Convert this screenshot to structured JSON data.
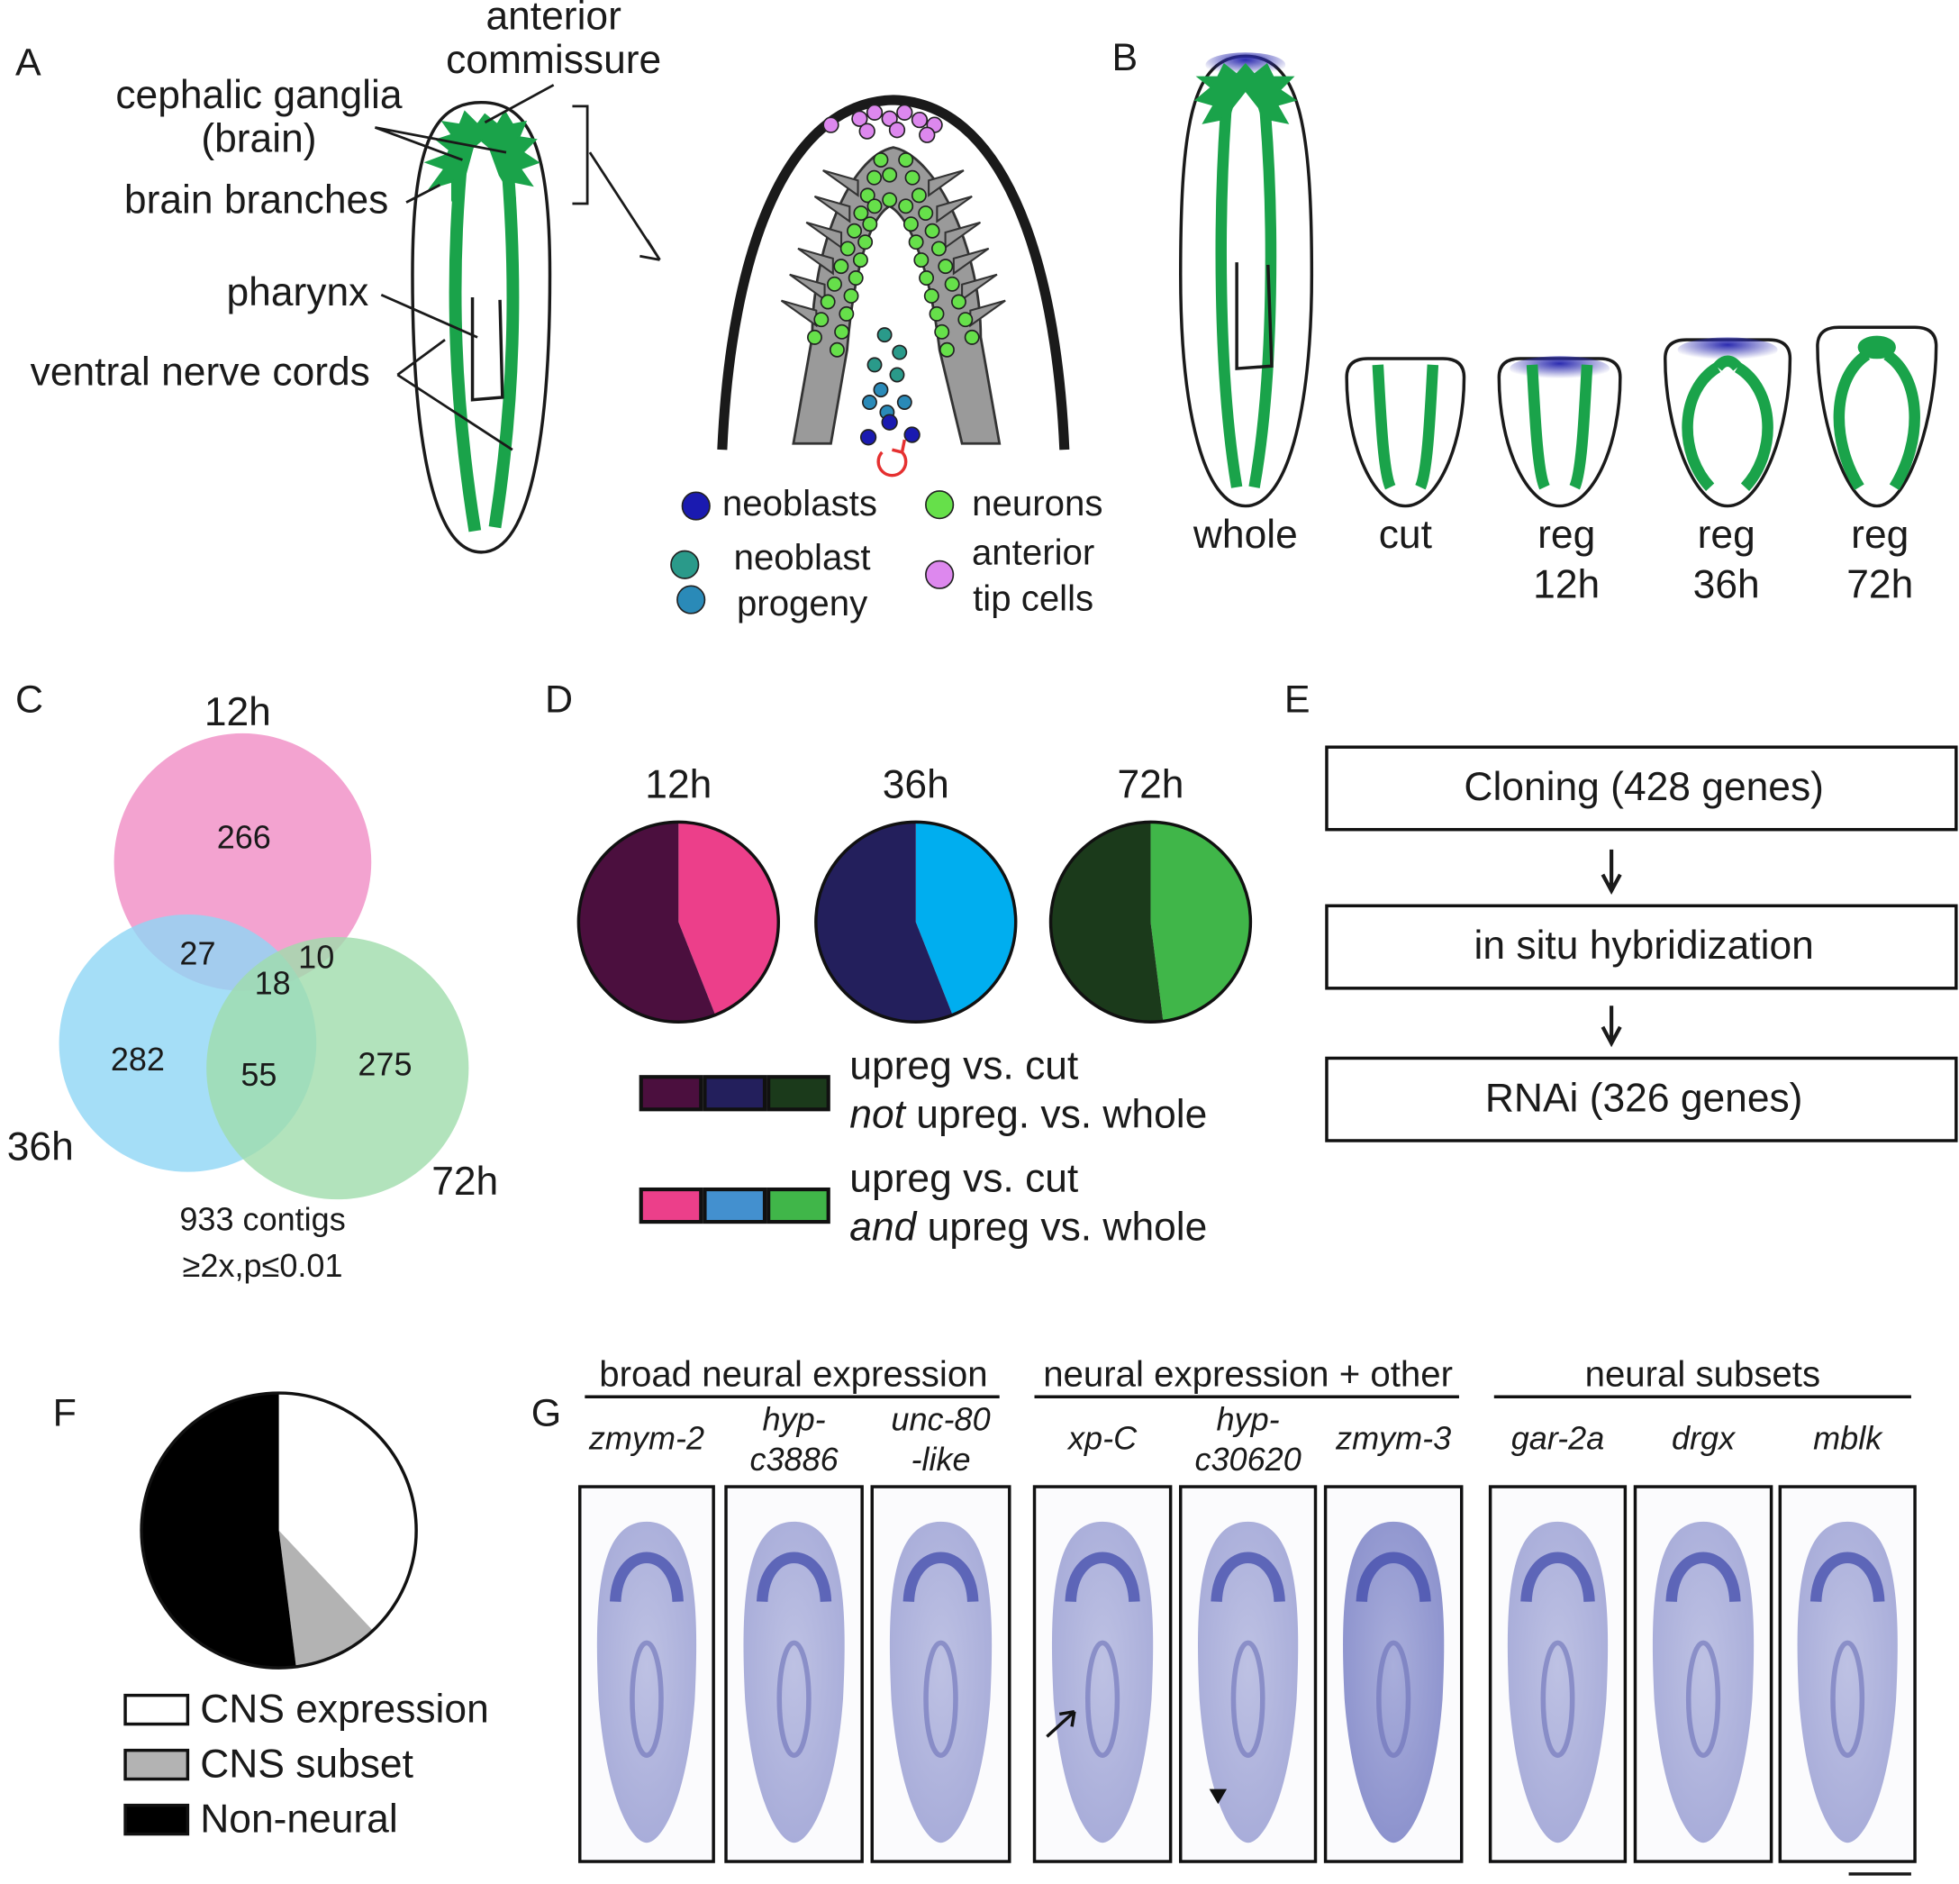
{
  "panel_a": {
    "label": "A",
    "annotations": [
      [
        "anterior",
        "commissure"
      ],
      [
        "cephalic ganglia",
        "(brain)"
      ],
      [
        "brain branches"
      ],
      [
        "pharynx"
      ],
      [
        "ventral nerve cords"
      ]
    ],
    "legend": [
      [
        "neoblasts"
      ],
      [
        "neurons"
      ],
      [
        "neoblast",
        "progeny"
      ],
      [
        "anterior",
        "tip cells"
      ]
    ]
  },
  "panel_b": {
    "label": "B",
    "stages": [
      [
        "whole"
      ],
      [
        "cut"
      ],
      [
        "reg",
        "12h"
      ],
      [
        "reg",
        "36h"
      ],
      [
        "reg",
        "72h"
      ]
    ]
  },
  "panel_c": {
    "label": "C",
    "sets": [
      "12h",
      "36h",
      "72h"
    ],
    "regions": {
      "only_12h": 266,
      "only_36h": 282,
      "only_72h": 275,
      "12h_36h": 27,
      "12h_72h": 10,
      "36h_72h": 55,
      "all": 18
    },
    "footer": [
      "933 contigs",
      "≥2x,p≤0.01"
    ]
  },
  "panel_d": {
    "label": "D",
    "chart_data": [
      {
        "type": "pie",
        "title": "12h",
        "values": [
          44,
          56
        ],
        "colors": [
          "#ec3f8a",
          "#4b0f3e"
        ]
      },
      {
        "type": "pie",
        "title": "36h",
        "values": [
          44,
          56
        ],
        "colors": [
          "#00aeef",
          "#231f5c"
        ]
      },
      {
        "type": "pie",
        "title": "72h",
        "values": [
          48,
          52
        ],
        "colors": [
          "#40b649",
          "#1b3a1b"
        ]
      }
    ],
    "legend": [
      {
        "colors": [
          "#4b0f3e",
          "#231f5c",
          "#1b3a1b"
        ],
        "lines": [
          [
            "upreg vs. cut"
          ],
          [
            "not",
            " upreg. vs. whole"
          ]
        ]
      },
      {
        "colors": [
          "#ec3f8a",
          "#4390cf",
          "#40b649"
        ],
        "lines": [
          [
            "upreg vs. cut"
          ],
          [
            "and",
            " upreg vs. whole"
          ]
        ]
      }
    ]
  },
  "panel_e": {
    "label": "E",
    "steps": [
      "Cloning (428 genes)",
      "in situ hybridization",
      "RNAi (326 genes)"
    ]
  },
  "panel_f": {
    "label": "F",
    "chart_data": {
      "type": "pie",
      "categories": [
        "CNS expression",
        "CNS subset",
        "Non-neural"
      ],
      "values": [
        38,
        10,
        52
      ],
      "colors": [
        "#ffffff",
        "#b3b3b3",
        "#000000"
      ]
    }
  },
  "panel_g": {
    "label": "G",
    "groups": [
      {
        "title": "broad neural expression",
        "genes": [
          [
            "zmym-2"
          ],
          [
            "hyp-",
            "c3886"
          ],
          [
            "unc-80",
            "-like"
          ]
        ]
      },
      {
        "title": "neural expression + other",
        "genes": [
          [
            "xp-C"
          ],
          [
            "hyp-",
            "c30620"
          ],
          [
            "zmym-3"
          ]
        ]
      },
      {
        "title": "neural subsets",
        "genes": [
          [
            "gar-2a"
          ],
          [
            "drgx"
          ],
          [
            "mblk"
          ]
        ]
      }
    ]
  }
}
